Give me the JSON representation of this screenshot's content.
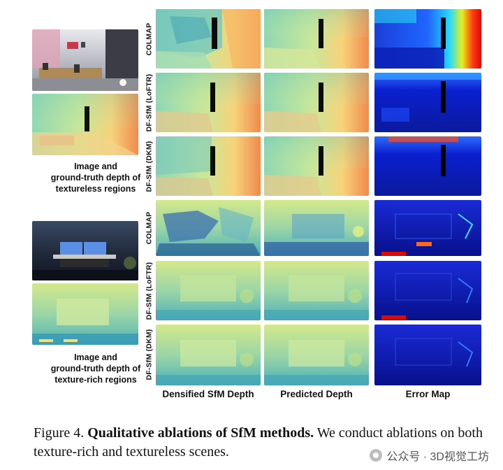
{
  "figure": {
    "column_headers": [
      "Densified SfM Depth",
      "Predicted Depth",
      "Error Map"
    ],
    "row_labels": [
      "COLMAP",
      "DF-SfM (LoFTR)",
      "DF-SfM (DKM)",
      "COLMAP",
      "DF-SfM (LoFTR)",
      "DF-SfM (DKM)"
    ],
    "groups": [
      {
        "caption_lines": [
          "Image and",
          "ground-truth depth of",
          "textureless regions"
        ]
      },
      {
        "caption_lines": [
          "Image and",
          "ground-truth depth of",
          "texture-rich regions"
        ]
      }
    ]
  },
  "caption": {
    "prefix": "Figure 4.",
    "title": "Qualitative ablations of SfM methods.",
    "body": "We conduct ablations on both texture-rich and textureless scenes."
  },
  "watermark": {
    "text": "公众号 · 3D视觉工坊"
  }
}
